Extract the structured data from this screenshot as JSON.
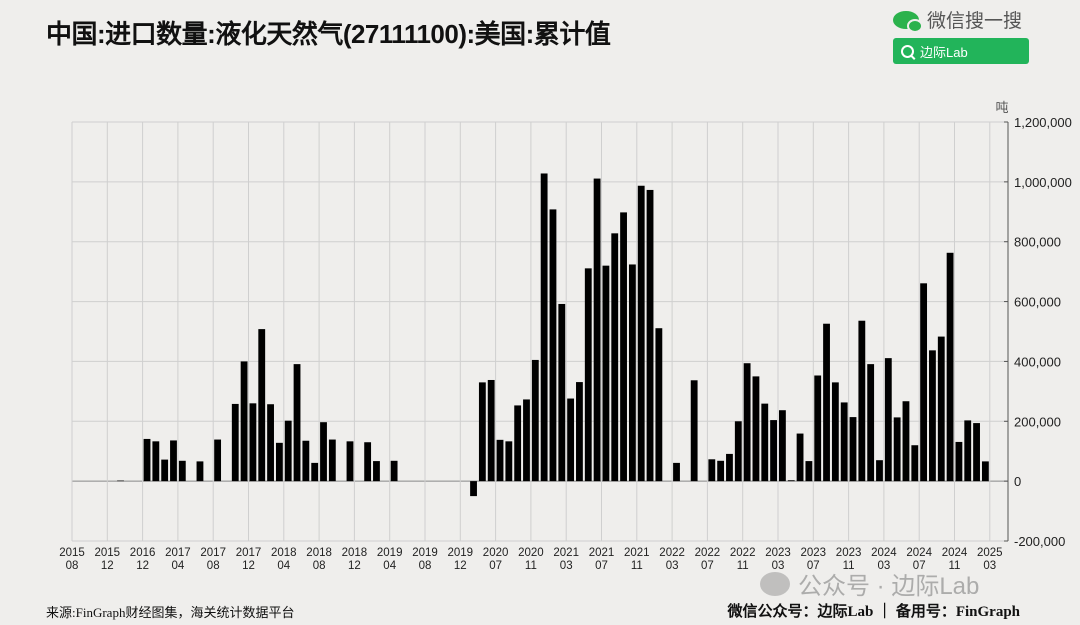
{
  "header": {
    "title": "中国:进口数量:液化天然气(27111100):美国:累计值",
    "wechat_search_label": "微信搜一搜",
    "search_button_label": "边际Lab"
  },
  "footer": {
    "source": "来源:FinGraph财经图集，海关统计数据平台",
    "credit": "微信公众号：边际Lab ｜ 备用号：FinGraph",
    "watermark": "公众号 · 边际Lab"
  },
  "colors": {
    "bar": "#000000",
    "grid": "#cfcfcf",
    "background": "#efeeec",
    "accent": "#22b45a"
  },
  "chart_data": {
    "type": "bar",
    "title": "中国:进口数量:液化天然气(27111100):美国:累计值",
    "ylabel": "吨",
    "ylim": [
      -200000,
      1200000
    ],
    "yticks": [
      -200000,
      0,
      200000,
      400000,
      600000,
      800000,
      1000000,
      1200000
    ],
    "ytick_labels": [
      "-200,000",
      "0",
      "200,000",
      "400,000",
      "600,000",
      "800,000",
      "1,000,000",
      "1,200,000"
    ],
    "grid": true,
    "categories_per_tick": 4,
    "tick_labels": [
      [
        "2015",
        "08"
      ],
      [
        "2015",
        "12"
      ],
      [
        "2016",
        "12"
      ],
      [
        "2017",
        "04"
      ],
      [
        "2017",
        "08"
      ],
      [
        "2017",
        "12"
      ],
      [
        "2018",
        "04"
      ],
      [
        "2018",
        "08"
      ],
      [
        "2018",
        "12"
      ],
      [
        "2019",
        "04"
      ],
      [
        "2019",
        "08"
      ],
      [
        "2019",
        "12"
      ],
      [
        "2020",
        "07"
      ],
      [
        "2020",
        "11"
      ],
      [
        "2021",
        "03"
      ],
      [
        "2021",
        "07"
      ],
      [
        "2021",
        "11"
      ],
      [
        "2022",
        "03"
      ],
      [
        "2022",
        "07"
      ],
      [
        "2022",
        "11"
      ],
      [
        "2023",
        "03"
      ],
      [
        "2023",
        "07"
      ],
      [
        "2023",
        "11"
      ],
      [
        "2024",
        "03"
      ],
      [
        "2024",
        "07"
      ],
      [
        "2024",
        "11"
      ],
      [
        "2025",
        "03"
      ]
    ],
    "values": [
      0,
      0,
      0,
      0,
      0,
      2000,
      0,
      0,
      141000,
      133000,
      72000,
      136000,
      68000,
      0,
      66000,
      0,
      139000,
      0,
      258000,
      400000,
      260000,
      508000,
      257000,
      128000,
      202000,
      391000,
      135000,
      61000,
      197000,
      139000,
      0,
      133000,
      0,
      130000,
      67000,
      0,
      68000,
      0,
      0,
      0,
      0,
      0,
      0,
      0,
      0,
      -50000,
      330000,
      338000,
      138000,
      133000,
      253000,
      273000,
      405000,
      1028000,
      908000,
      592000,
      276000,
      331000,
      711000,
      1011000,
      720000,
      828000,
      898000,
      724000,
      987000,
      973000,
      511000,
      0,
      61000,
      0,
      337000,
      0,
      73000,
      68000,
      91000,
      200000,
      394000,
      350000,
      259000,
      204000,
      237000,
      3000,
      159000,
      67000,
      353000,
      526000,
      330000,
      263000,
      214000,
      536000,
      391000,
      70000,
      411000,
      213000,
      267000,
      120000,
      661000,
      437000,
      483000,
      763000,
      131000,
      203000,
      194000,
      66000,
      0
    ]
  }
}
